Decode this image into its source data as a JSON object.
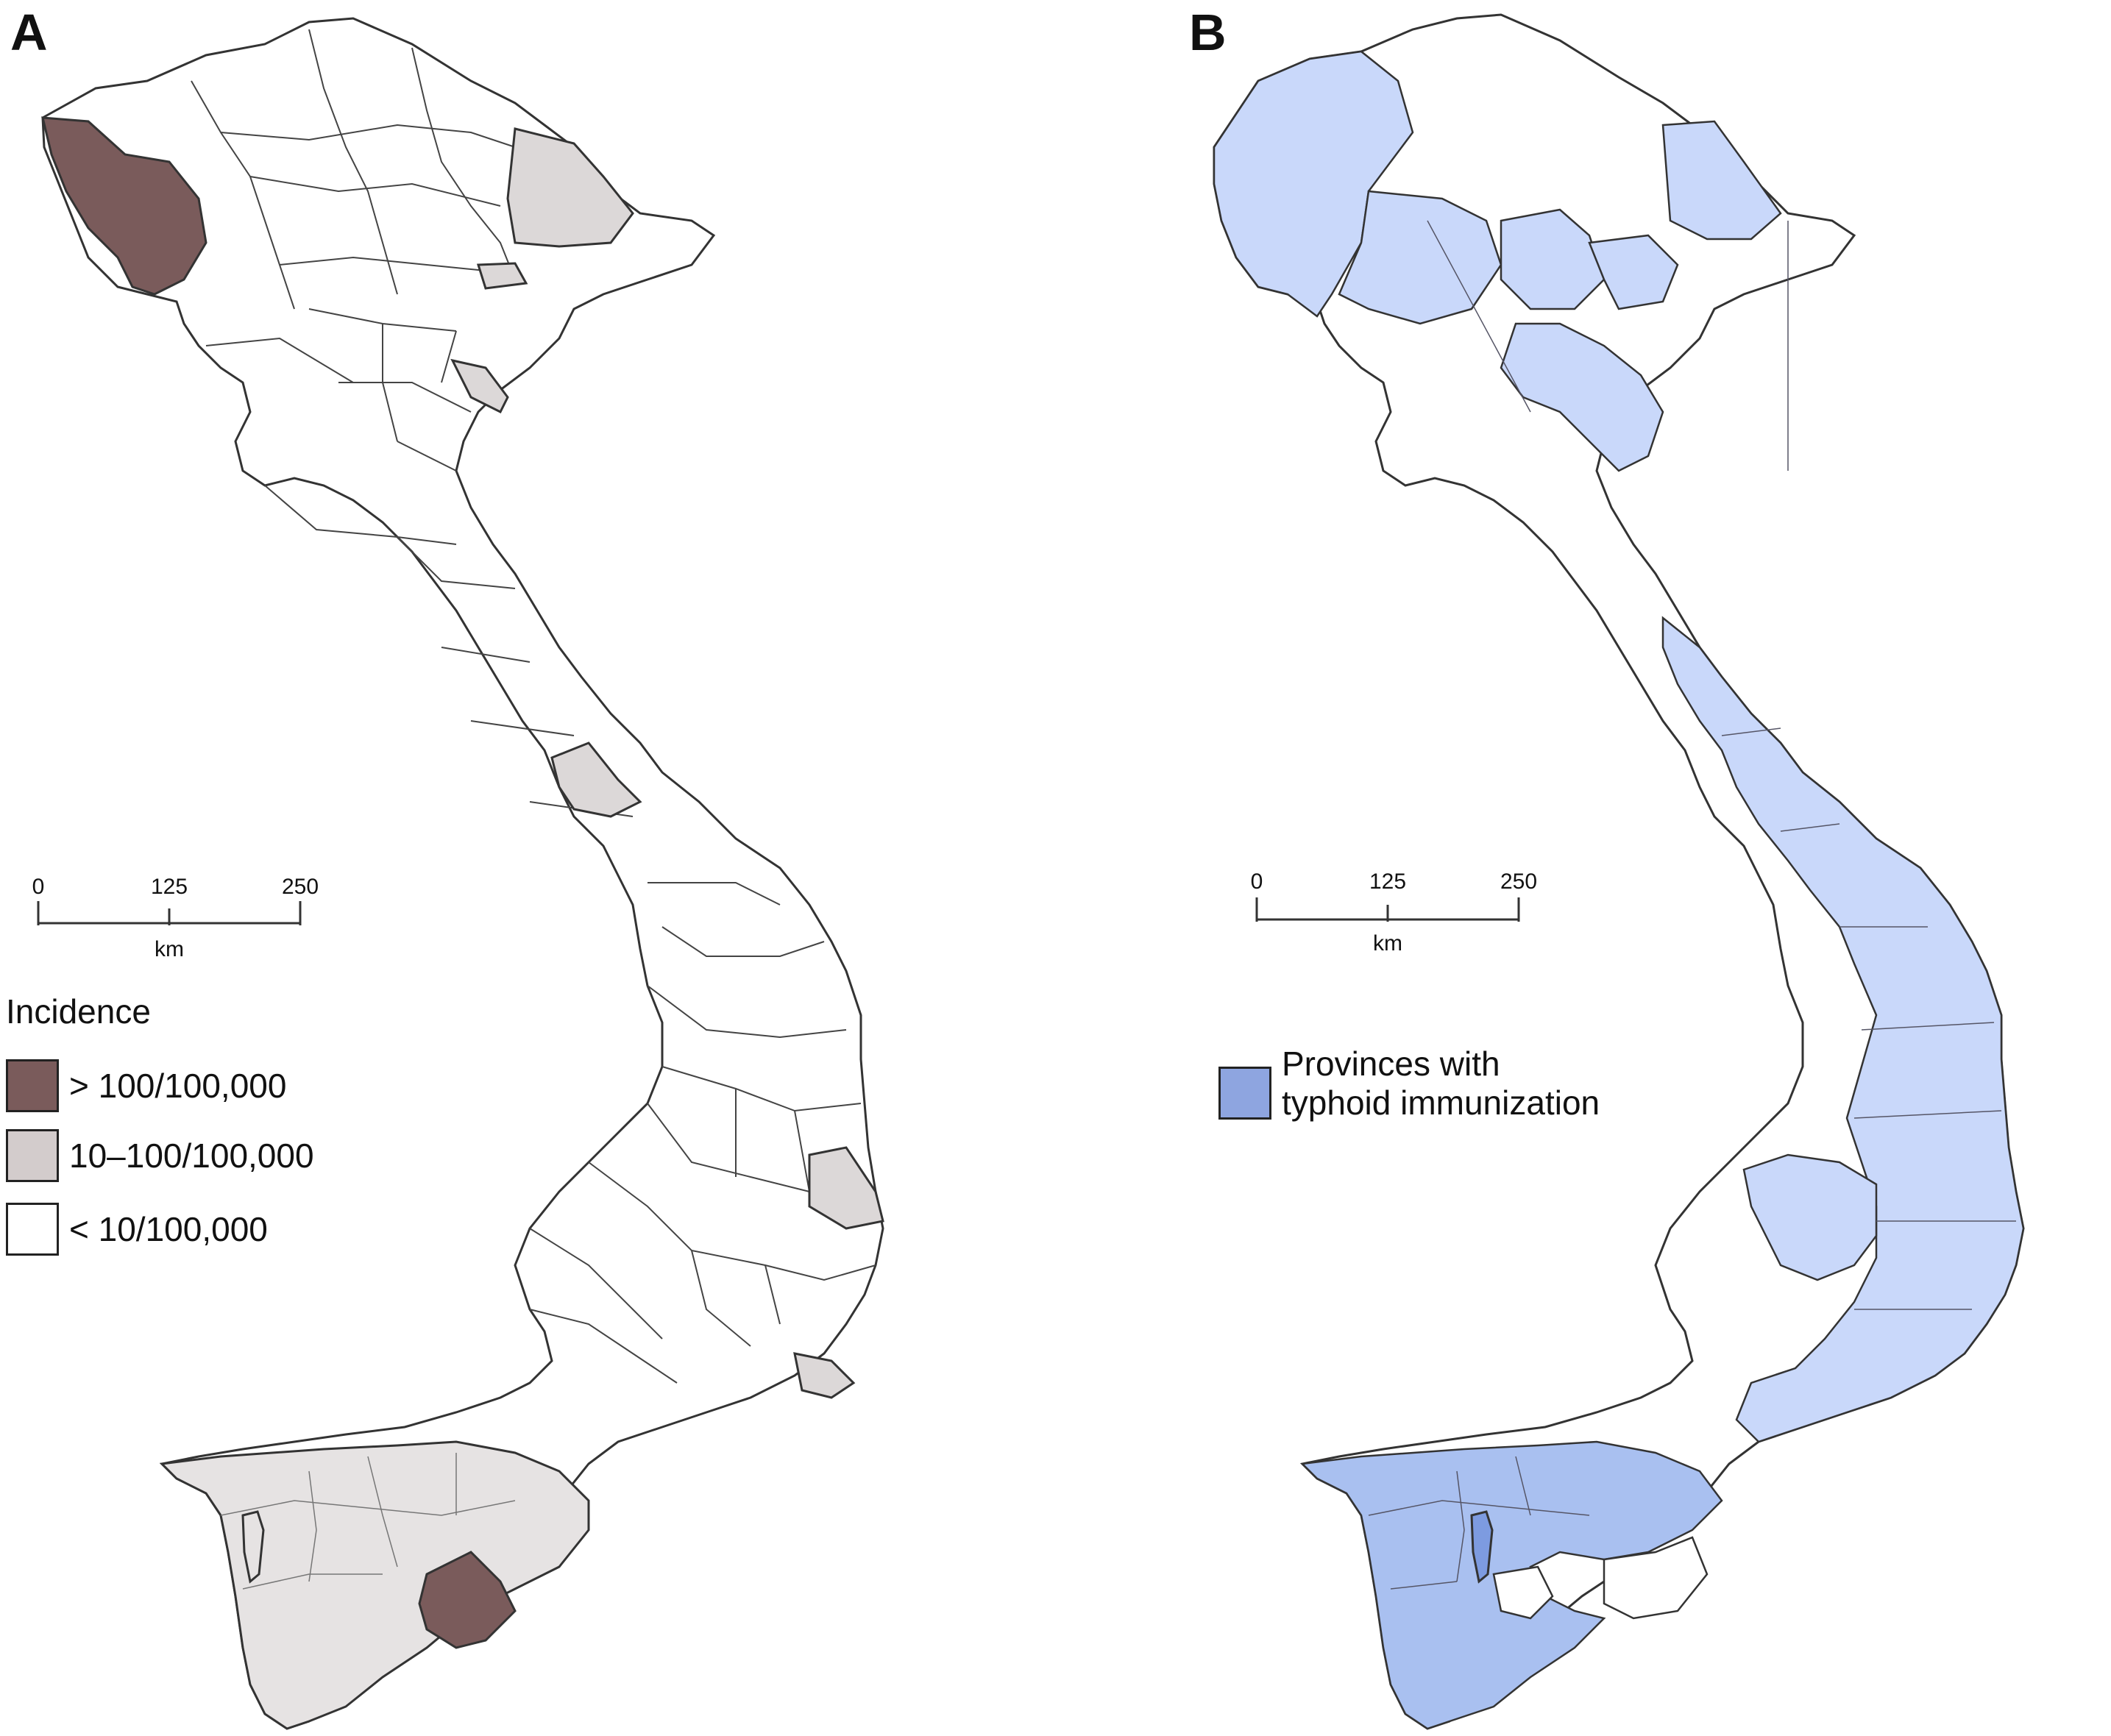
{
  "panel_a": {
    "letter": "A",
    "scale_bar": {
      "ticks": [
        "0",
        "125",
        "250"
      ],
      "unit": "km"
    },
    "legend": {
      "title": "Incidence",
      "items": [
        {
          "label": "> 100/100,000",
          "color": "#7a5b5b"
        },
        {
          "label": "10–100/100,000",
          "color": "#d3cccc"
        },
        {
          "label": "< 10/100,000",
          "color": "#ffffff"
        }
      ]
    }
  },
  "panel_b": {
    "letter": "B",
    "scale_bar": {
      "ticks": [
        "0",
        "125",
        "250"
      ],
      "unit": "km"
    },
    "legend": {
      "items": [
        {
          "label_line1": "Provinces with",
          "label_line2": "typhoid immunization",
          "color": "#8ea5e0"
        }
      ]
    }
  },
  "colors": {
    "outline": "#333333",
    "high_incidence": "#7a5b5b",
    "mid_incidence": "#dcd8d8",
    "delta_incidence": "#e6e3e3",
    "immunized": "#c9d8fa",
    "immunized_delta": "#a9c0f0",
    "island_immunized": "#7d9be0"
  }
}
